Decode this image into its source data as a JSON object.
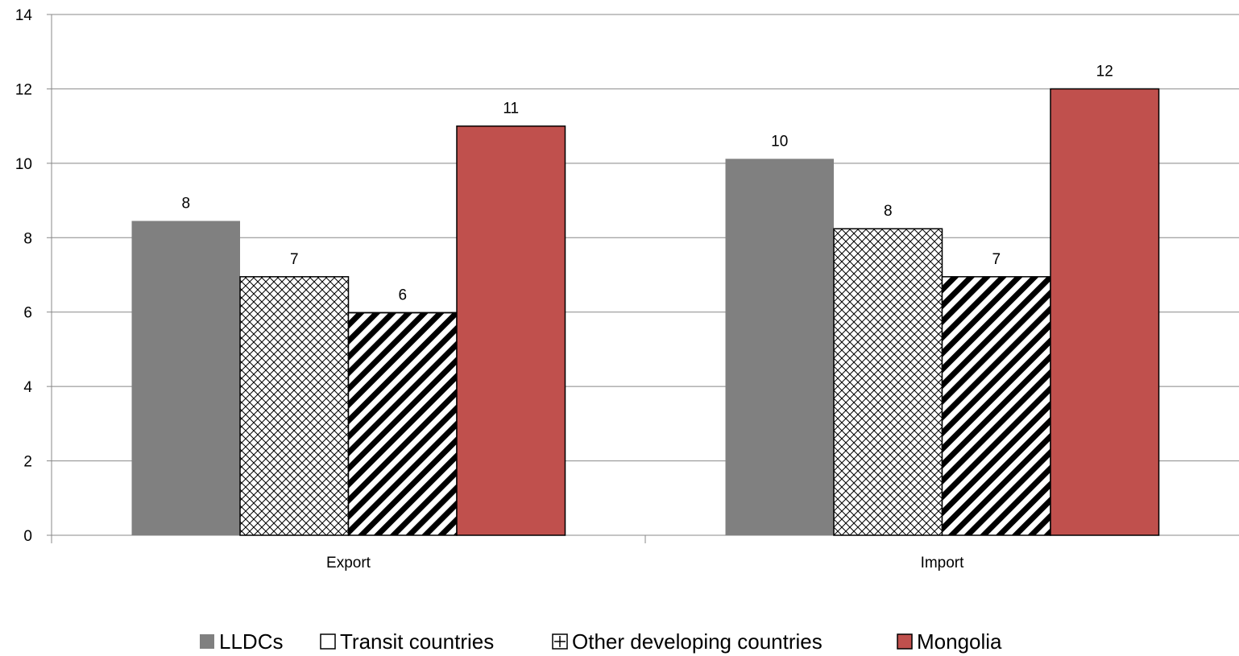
{
  "chart_data": {
    "type": "bar",
    "title": "",
    "xlabel": "",
    "ylabel": "",
    "categories": [
      "Export",
      "Import"
    ],
    "ylim": [
      0,
      14
    ],
    "yticks": [
      0,
      2,
      4,
      6,
      8,
      10,
      12,
      14
    ],
    "grid": true,
    "legend_position": "bottom",
    "series": [
      {
        "name": "LLDCs",
        "values": [
          8.45,
          10.12
        ],
        "labels": [
          "8",
          "10"
        ],
        "color": "#808080",
        "pattern": "solid"
      },
      {
        "name": "Transit countries",
        "values": [
          6.95,
          8.24
        ],
        "labels": [
          "7",
          "8"
        ],
        "color": "#ffffff",
        "pattern": "crosshatch"
      },
      {
        "name": "Other developing countries",
        "values": [
          5.98,
          6.95
        ],
        "labels": [
          "6",
          "7"
        ],
        "color": "#000000",
        "pattern": "diagonal"
      },
      {
        "name": "Mongolia",
        "values": [
          11.0,
          12.0
        ],
        "labels": [
          "11",
          "12"
        ],
        "color": "#c0504d",
        "pattern": "solid"
      }
    ]
  }
}
